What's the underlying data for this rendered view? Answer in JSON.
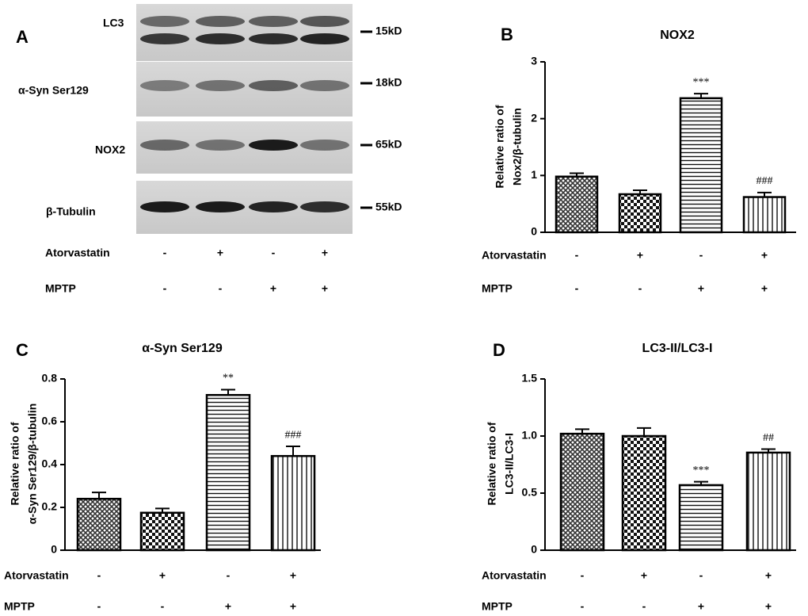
{
  "blot": {
    "panel": "A",
    "rows": [
      {
        "label": "LC3",
        "marker": "15kD"
      },
      {
        "label": "α-Syn Ser129",
        "marker": "18kD"
      },
      {
        "label": "NOX2",
        "marker": "65kD"
      },
      {
        "label": "β-Tubulin",
        "marker": "55kD"
      }
    ],
    "treatments": [
      {
        "name": "Atorvastatin",
        "signs": [
          "-",
          "+",
          "-",
          "+"
        ]
      },
      {
        "name": "MPTP",
        "signs": [
          "-",
          "-",
          "+",
          "+"
        ]
      }
    ]
  },
  "chart_data": [
    {
      "type": "bar",
      "panel": "B",
      "title": "NOX2",
      "y_label": [
        "Relative ratio of",
        "Nox2/β-tubulin"
      ],
      "values": [
        0.98,
        0.67,
        2.36,
        0.62
      ],
      "errors": [
        0.06,
        0.07,
        0.08,
        0.08
      ],
      "significance": [
        null,
        null,
        "***",
        "###"
      ],
      "ylim": [
        0,
        3
      ],
      "yticks": [
        0,
        1,
        2,
        3
      ],
      "treatments": [
        {
          "name": "Atorvastatin",
          "signs": [
            "-",
            "+",
            "-",
            "+"
          ]
        },
        {
          "name": "MPTP",
          "signs": [
            "-",
            "-",
            "+",
            "+"
          ]
        }
      ]
    },
    {
      "type": "bar",
      "panel": "C",
      "title": "α-Syn Ser129",
      "y_label": [
        "Relative ratio of",
        "α-Syn Ser129/β-tubulin"
      ],
      "values": [
        0.24,
        0.175,
        0.725,
        0.44
      ],
      "errors": [
        0.03,
        0.02,
        0.025,
        0.045
      ],
      "significance": [
        null,
        null,
        "**",
        "###"
      ],
      "ylim": [
        0,
        0.8
      ],
      "yticks": [
        0,
        0.2,
        0.4,
        0.6,
        0.8
      ],
      "treatments": [
        {
          "name": "Atorvastatin",
          "signs": [
            "-",
            "+",
            "-",
            "+"
          ]
        },
        {
          "name": "MPTP",
          "signs": [
            "-",
            "-",
            "+",
            "+"
          ]
        }
      ]
    },
    {
      "type": "bar",
      "panel": "D",
      "title": "LC3-II/LC3-I",
      "y_label": [
        "Relative ratio of",
        "LC3-II/LC3-I"
      ],
      "values": [
        1.02,
        1.0,
        0.57,
        0.855
      ],
      "errors": [
        0.04,
        0.07,
        0.03,
        0.03
      ],
      "significance": [
        null,
        null,
        "***",
        "##"
      ],
      "ylim": [
        0,
        1.5
      ],
      "yticks": [
        0,
        0.5,
        {
          "value": 1,
          "label": "1.0"
        },
        1.5
      ],
      "treatments": [
        {
          "name": "Atorvastatin",
          "signs": [
            "-",
            "+",
            "-",
            "+"
          ]
        },
        {
          "name": "MPTP",
          "signs": [
            "-",
            "-",
            "+",
            "+"
          ]
        }
      ]
    }
  ]
}
